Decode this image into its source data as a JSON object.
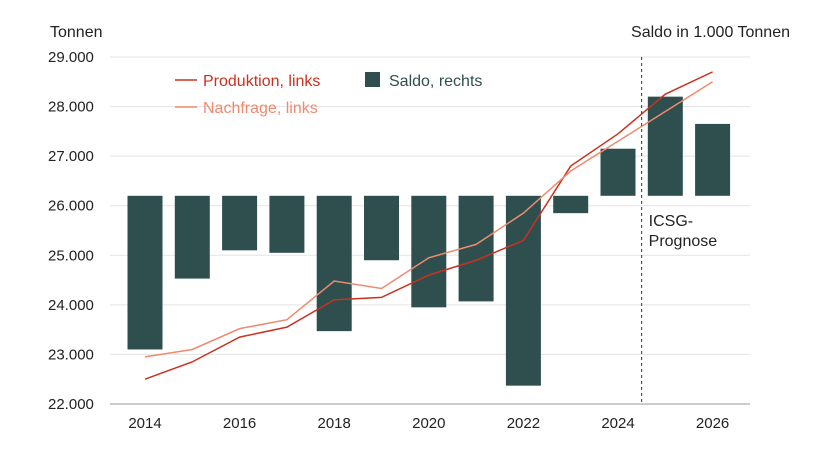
{
  "chart_data": {
    "type": "bar+line",
    "left_axis_label": "Tonnen",
    "right_axis_label": "Saldo in 1.000 Tonnen",
    "y_left": {
      "min": 22000,
      "max": 29000,
      "ticks": [
        "22.000",
        "23.000",
        "24.000",
        "25.000",
        "26.000",
        "27.000",
        "28.000",
        "29.000"
      ],
      "tick_values": [
        22000,
        23000,
        24000,
        25000,
        26000,
        27000,
        28000,
        29000
      ]
    },
    "x": [
      2014,
      2015,
      2016,
      2017,
      2018,
      2019,
      2020,
      2021,
      2022,
      2023,
      2024,
      2025,
      2026
    ],
    "x_tick_labels": [
      "2014",
      "2016",
      "2018",
      "2020",
      "2022",
      "2024",
      "2026"
    ],
    "x_tick_values": [
      2014,
      2016,
      2018,
      2020,
      2022,
      2024,
      2026
    ],
    "series": [
      {
        "name": "Produktion, links",
        "type": "line",
        "axis": "left",
        "color": "#c8321e",
        "values": [
          22500,
          22850,
          23350,
          23550,
          24100,
          24150,
          24600,
          24900,
          25300,
          26800,
          27450,
          28250,
          28700
        ]
      },
      {
        "name": "Nachfrage, links",
        "type": "line",
        "axis": "left",
        "color": "#ee8a6e",
        "values": [
          22950,
          23100,
          23520,
          23700,
          24480,
          24330,
          24950,
          25220,
          25850,
          26700,
          27300,
          27900,
          28500
        ]
      },
      {
        "name": "Saldo, rechts",
        "type": "bar",
        "axis": "right",
        "color": "#2f4f4f",
        "values": [
          -1550,
          -250,
          -1700,
          -1500,
          -2000,
          -450,
          -1800,
          -330,
          -730,
          -1150,
          -2130,
          -1300,
          -780
        ],
        "baseline_left_equiv": 26200,
        "bar_tops_left_equiv": [
          26200,
          26200,
          26200,
          26200,
          26200,
          26200,
          26200,
          26200,
          26200,
          26200,
          26200,
          26200,
          26200
        ],
        "bar_ends_left_equiv": [
          23100,
          24530,
          25100,
          25050,
          23470,
          24900,
          23950,
          24070,
          22370,
          25850,
          27150,
          28200,
          27650
        ]
      }
    ],
    "annotation": {
      "text_lines": [
        "ICSG-",
        "Prognose"
      ],
      "divider_x": 2024.5,
      "divider_style": "dashed"
    },
    "legend": [
      {
        "label": "Produktion, links",
        "marker": "line",
        "color": "#c8321e"
      },
      {
        "label": "Nachfrage, links",
        "marker": "line",
        "color": "#ee8a6e"
      },
      {
        "label": "Saldo, rechts",
        "marker": "square",
        "color": "#2f4f4f"
      }
    ],
    "grid": true
  }
}
